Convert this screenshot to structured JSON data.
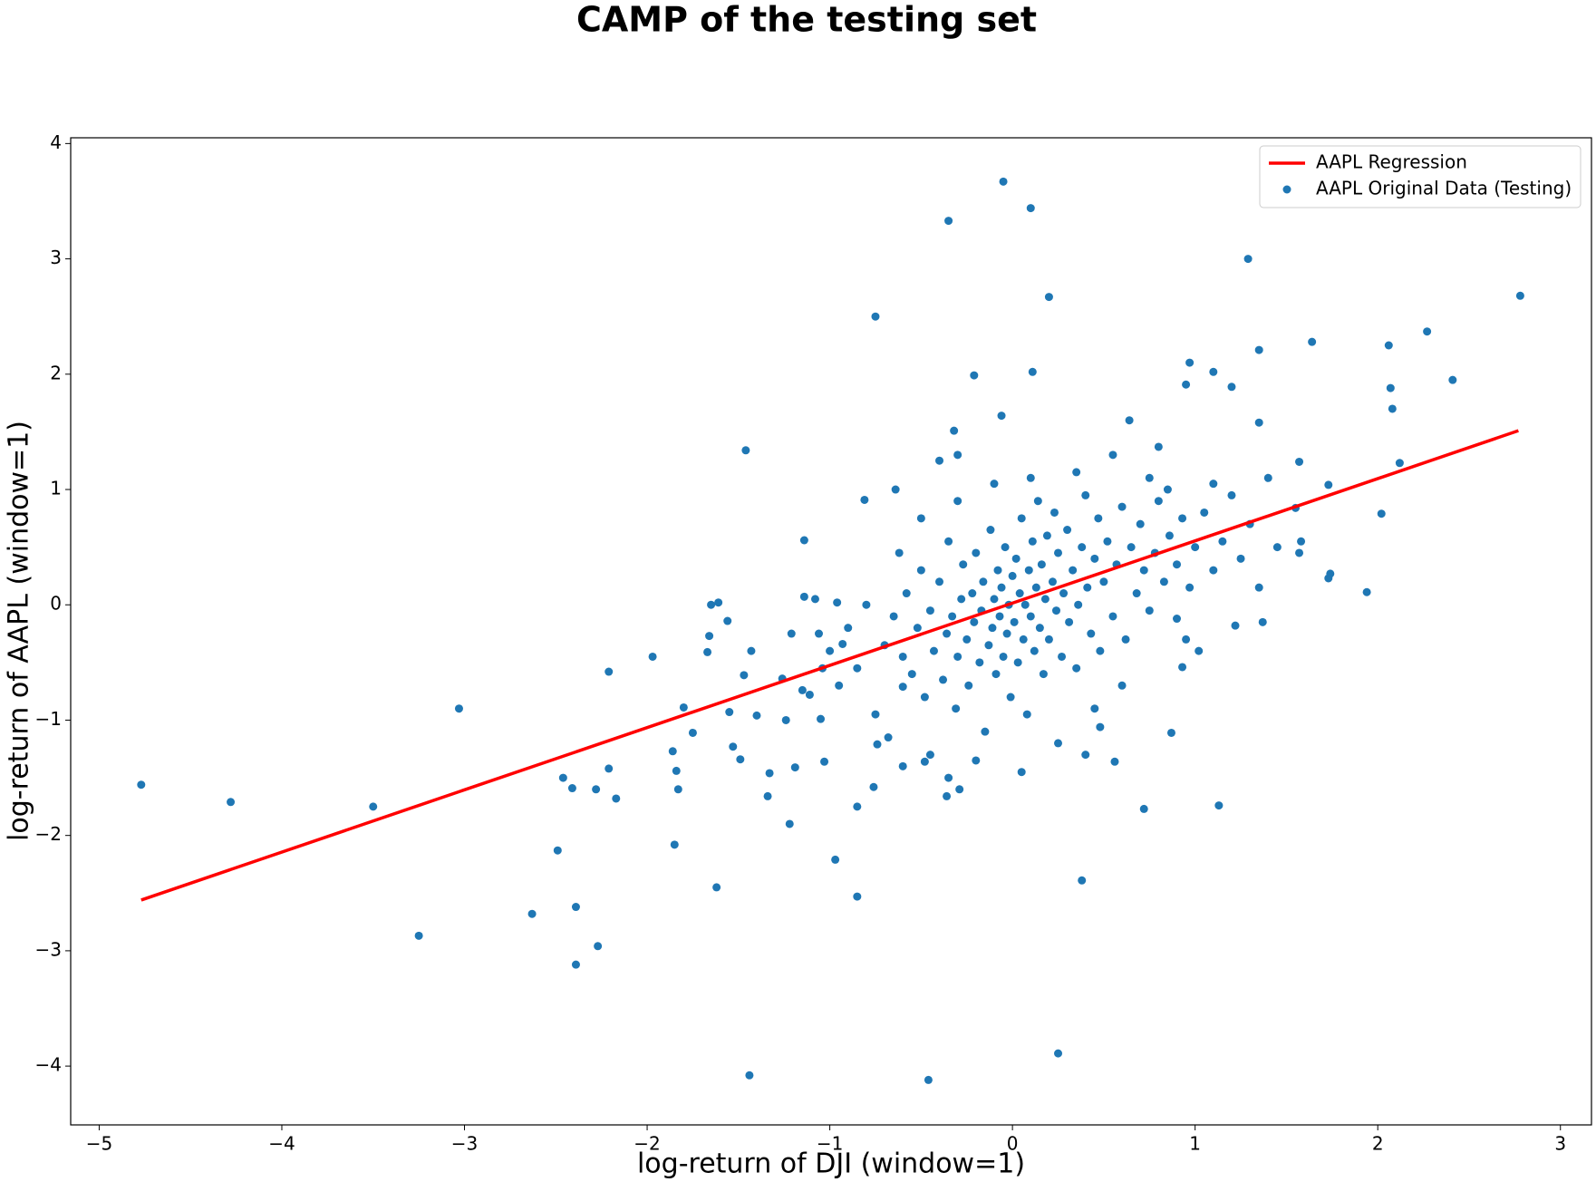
{
  "chart_data": {
    "type": "scatter",
    "title": "CAMP of the testing set",
    "x_label": "log-return of DJI (window=1)",
    "y_label": "log-return of AAPL (window=1)",
    "xlim": [
      -5.156,
      3.17
    ],
    "ylim": [
      -4.51,
      4.05
    ],
    "xticks": [
      {
        "value": -5,
        "label": "−5"
      },
      {
        "value": -4,
        "label": "−4"
      },
      {
        "value": -3,
        "label": "−3"
      },
      {
        "value": -2,
        "label": "−2"
      },
      {
        "value": -1,
        "label": "−1"
      },
      0,
      1,
      2,
      3
    ],
    "yticks": [
      {
        "value": -4,
        "label": "−4"
      },
      {
        "value": -3,
        "label": "−3"
      },
      {
        "value": -2,
        "label": "−2"
      },
      {
        "value": -1,
        "label": "−1"
      },
      0,
      1,
      2,
      3,
      4
    ],
    "grid": false,
    "legend": "upper-right",
    "series": [
      {
        "name": "AAPL Regression",
        "type": "line",
        "color": "#ff0000",
        "x": [
          -4.77,
          2.77
        ],
        "values": [
          -2.56,
          1.51
        ]
      },
      {
        "name": "AAPL Original Data (Testing)",
        "type": "scatter",
        "color": "#1f77b4",
        "x": [
          -4.77,
          -4.28,
          -3.5,
          -3.03,
          -3.25,
          -2.63,
          -2.49,
          -2.46,
          -2.41,
          -2.39,
          -2.39,
          -2.27,
          -2.28,
          -2.21,
          -2.21,
          -2.17,
          -1.97,
          -1.86,
          -1.85,
          -1.84,
          -1.83,
          -1.8,
          -1.75,
          -1.65,
          -1.61,
          -1.62,
          -1.56,
          -1.66,
          -1.67,
          -1.55,
          -1.53,
          -1.49,
          -1.46,
          -1.47,
          -1.43,
          -1.44,
          -1.4,
          -1.34,
          -1.33,
          -1.26,
          -1.24,
          -1.22,
          -1.21,
          -1.19,
          -1.15,
          -1.14,
          -1.14,
          -1.11,
          -1.08,
          -1.06,
          -1.05,
          -1.04,
          -1.03,
          -0.97,
          -0.96,
          -0.93,
          -0.85,
          -0.85,
          -0.81,
          -0.76,
          -0.75,
          -0.74,
          -0.64,
          -0.6,
          -0.48,
          -0.46,
          -0.4,
          -0.36,
          -0.35,
          -0.32,
          -0.3,
          -0.21,
          -0.29,
          -0.05,
          -0.06,
          0.1,
          0.11,
          0.2,
          0.25,
          0.38,
          0.48,
          0.4,
          0.56,
          0.64,
          0.72,
          0.8,
          0.87,
          0.93,
          0.95,
          0.97,
          1.1,
          1.13,
          1.2,
          1.29,
          1.35,
          1.35,
          1.64,
          1.94,
          2.02,
          2.06,
          2.07,
          2.08,
          2.12,
          2.27,
          2.41,
          2.78,
          1.57,
          1.58,
          1.55,
          1.57,
          1.73,
          1.73,
          1.74,
          1.37,
          1.22,
          1.02,
          0.9,
          -0.7,
          -0.65,
          -0.6,
          -0.58,
          -0.55,
          -0.52,
          -0.5,
          -0.48,
          -0.45,
          -0.43,
          -0.4,
          -0.38,
          -0.36,
          -0.35,
          -0.33,
          -0.31,
          -0.3,
          -0.28,
          -0.27,
          -0.25,
          -0.24,
          -0.22,
          -0.21,
          -0.2,
          -0.18,
          -0.17,
          -0.16,
          -0.15,
          -0.13,
          -0.12,
          -0.11,
          -0.1,
          -0.09,
          -0.08,
          -0.07,
          -0.06,
          -0.05,
          -0.04,
          -0.03,
          -0.02,
          -0.01,
          0,
          0.01,
          0.02,
          0.03,
          0.04,
          0.05,
          0.06,
          0.07,
          0.08,
          0.09,
          0.1,
          0.11,
          0.12,
          0.13,
          0.14,
          0.15,
          0.16,
          0.17,
          0.18,
          0.19,
          0.2,
          0.22,
          0.23,
          0.24,
          0.25,
          0.27,
          0.28,
          0.3,
          0.31,
          0.33,
          0.35,
          0.36,
          0.38,
          0.4,
          0.41,
          0.43,
          0.45,
          0.47,
          0.48,
          0.5,
          0.52,
          0.55,
          0.57,
          0.6,
          0.62,
          0.65,
          0.68,
          0.7,
          0.72,
          0.75,
          0.78,
          0.8,
          0.83,
          0.86,
          0.9,
          0.93,
          0.97,
          1,
          1.05,
          1.1,
          1.15,
          1.2,
          1.25,
          1.3,
          1.35,
          1.4,
          1.45,
          -0.85,
          -0.9,
          -0.95,
          -1,
          -0.75,
          -0.8,
          -0.68,
          -0.62,
          -0.45,
          -0.35,
          -0.2,
          0.05,
          0.25,
          0.45,
          0.6,
          0.75,
          0.55,
          0.35,
          0.1,
          -0.1,
          -0.3,
          -0.5,
          -0.6,
          0.85,
          1.1,
          0.95
        ],
        "values": [
          -1.56,
          -1.71,
          -1.75,
          -0.9,
          -2.87,
          -2.68,
          -2.13,
          -1.5,
          -1.59,
          -2.62,
          -3.12,
          -2.96,
          -1.6,
          -0.58,
          -1.42,
          -1.68,
          -0.45,
          -1.27,
          -2.08,
          -1.44,
          -1.6,
          -0.89,
          -1.11,
          0,
          0.02,
          -2.45,
          -0.14,
          -0.27,
          -0.41,
          -0.93,
          -1.23,
          -1.34,
          1.34,
          -0.61,
          -0.4,
          -4.08,
          -0.96,
          -1.66,
          -1.46,
          -0.64,
          -1,
          -1.9,
          -0.25,
          -1.41,
          -0.74,
          0.56,
          0.07,
          -0.78,
          0.05,
          -0.25,
          -0.99,
          -0.55,
          -1.36,
          -2.21,
          0.02,
          -0.34,
          -2.53,
          -1.75,
          0.91,
          -1.58,
          2.5,
          -1.21,
          1,
          -0.71,
          -1.36,
          -4.12,
          1.25,
          -1.66,
          3.33,
          1.51,
          1.3,
          1.99,
          -1.6,
          3.67,
          1.64,
          3.44,
          2.02,
          2.67,
          -3.89,
          -2.39,
          -1.06,
          -1.3,
          -1.36,
          1.6,
          -1.77,
          1.37,
          -1.11,
          -0.54,
          1.91,
          2.1,
          2.02,
          -1.74,
          1.89,
          3,
          2.21,
          1.58,
          2.28,
          0.11,
          0.79,
          2.25,
          1.88,
          1.7,
          1.23,
          2.37,
          1.95,
          2.68,
          0.45,
          0.55,
          0.84,
          1.24,
          0.23,
          1.04,
          0.27,
          -0.15,
          -0.18,
          -0.4,
          -0.12,
          -0.35,
          -0.1,
          -0.45,
          0.1,
          -0.6,
          -0.2,
          0.3,
          -0.8,
          -0.05,
          -0.4,
          0.2,
          -0.65,
          -0.25,
          0.55,
          -0.1,
          -0.9,
          -0.45,
          0.05,
          0.35,
          -0.3,
          -0.7,
          0.1,
          -0.15,
          0.45,
          -0.5,
          -0.05,
          0.2,
          -1.1,
          -0.35,
          0.65,
          -0.2,
          0.05,
          -0.6,
          0.3,
          -0.1,
          0.15,
          -0.45,
          0.5,
          -0.25,
          0,
          -0.8,
          0.25,
          -0.15,
          0.4,
          -0.5,
          0.1,
          0.75,
          -0.3,
          0,
          -0.95,
          0.3,
          -0.1,
          0.55,
          -0.4,
          0.15,
          0.9,
          -0.2,
          0.35,
          -0.6,
          0.05,
          0.6,
          -0.3,
          0.2,
          0.8,
          -0.05,
          0.45,
          -0.45,
          0.1,
          0.65,
          -0.15,
          0.3,
          -0.55,
          0,
          0.5,
          0.95,
          0.15,
          -0.25,
          0.4,
          0.75,
          -0.4,
          0.2,
          0.55,
          -0.1,
          0.35,
          0.85,
          -0.3,
          0.5,
          0.1,
          0.7,
          0.3,
          -0.05,
          0.45,
          0.9,
          0.2,
          0.6,
          0.35,
          0.75,
          0.15,
          0.5,
          0.8,
          0.3,
          0.55,
          0.95,
          0.4,
          0.7,
          0.15,
          1.1,
          0.5,
          -0.55,
          -0.2,
          -0.7,
          -0.4,
          -0.95,
          0,
          -1.15,
          0.45,
          -1.3,
          -1.5,
          -1.35,
          -1.45,
          -1.2,
          -0.9,
          -0.7,
          1.1,
          1.3,
          1.15,
          1.1,
          1.05,
          0.9,
          0.75,
          -1.4,
          1,
          1.05,
          -0.3
        ]
      }
    ]
  }
}
